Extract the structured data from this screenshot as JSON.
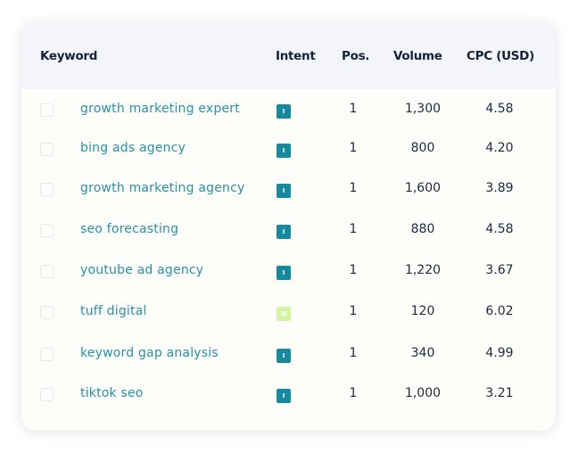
{
  "table": {
    "headers": {
      "keyword": "Keyword",
      "intent": "Intent",
      "pos": "Pos.",
      "volume": "Volume",
      "cpc": "CPC (USD)"
    },
    "intent_colors": {
      "I": "#17899f",
      "N": "#d4f5a0"
    },
    "rows": [
      {
        "keyword": "growth marketing expert",
        "intent": "I",
        "pos": "1",
        "volume": "1,300",
        "cpc": "4.58"
      },
      {
        "keyword": "bing ads agency",
        "intent": "I",
        "pos": "1",
        "volume": "800",
        "cpc": "4.20"
      },
      {
        "keyword": "growth marketing agency",
        "intent": "I",
        "pos": "1",
        "volume": "1,600",
        "cpc": "3.89"
      },
      {
        "keyword": "seo forecasting",
        "intent": "I",
        "pos": "1",
        "volume": "880",
        "cpc": "4.58"
      },
      {
        "keyword": "youtube ad agency",
        "intent": "I",
        "pos": "1",
        "volume": "1,220",
        "cpc": "3.67"
      },
      {
        "keyword": "tuff digital",
        "intent": "N",
        "pos": "1",
        "volume": "120",
        "cpc": "6.02"
      },
      {
        "keyword": "keyword gap analysis",
        "intent": "I",
        "pos": "1",
        "volume": "340",
        "cpc": "4.99"
      },
      {
        "keyword": "tiktok seo",
        "intent": "I",
        "pos": "1",
        "volume": "1,000",
        "cpc": "3.21"
      }
    ]
  }
}
